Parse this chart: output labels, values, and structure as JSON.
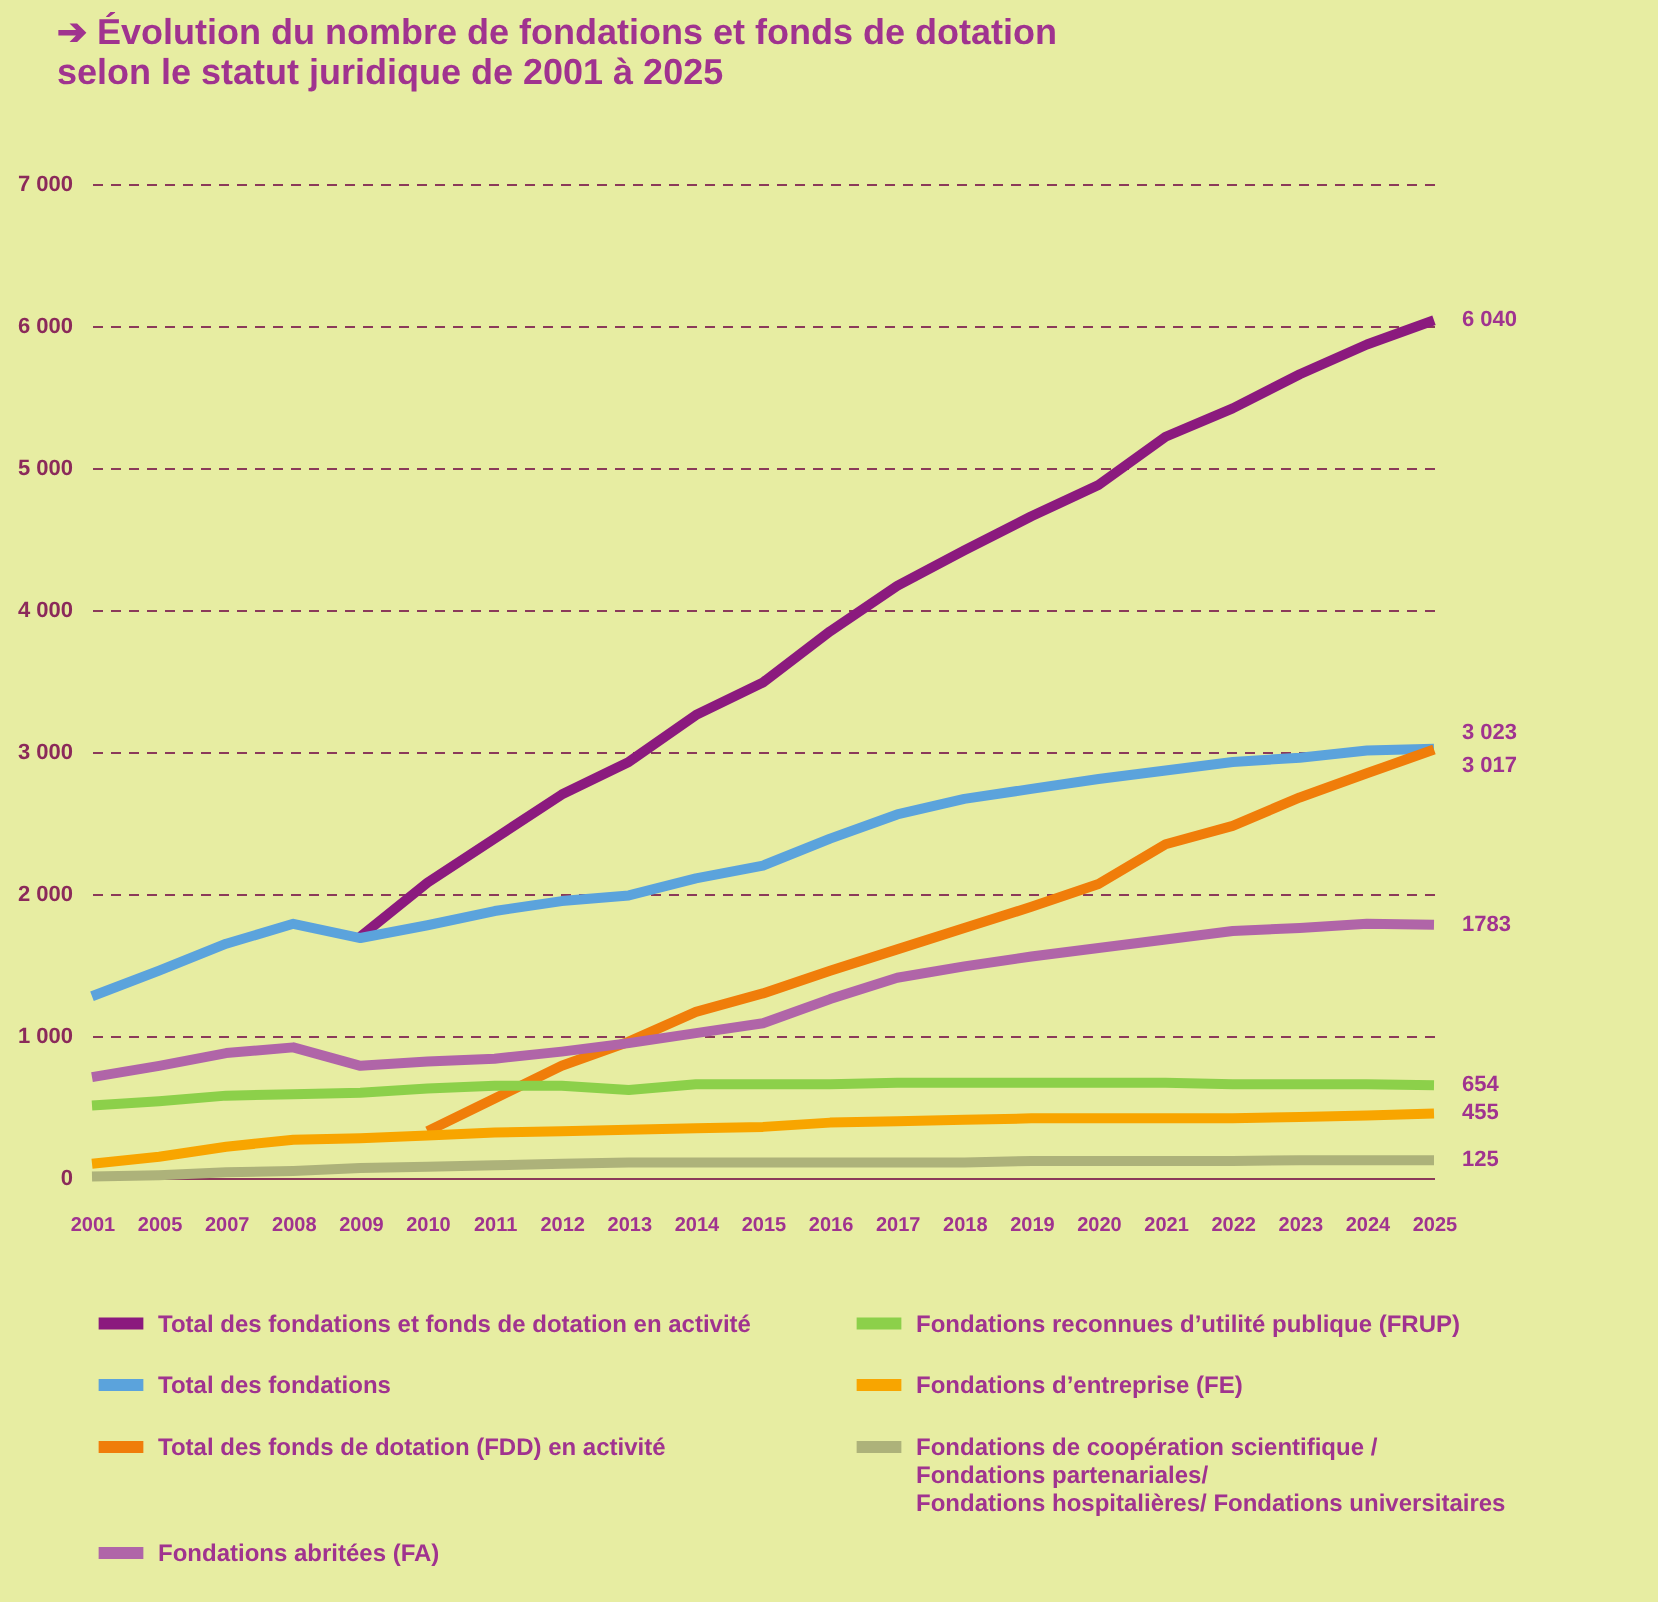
{
  "chart_data": {
    "type": "line",
    "title": "➔ Évolution du nombre de fondations et fonds de dotation selon le statut juridique de 2001 à 2025",
    "categories": [
      "2001",
      "2005",
      "2007",
      "2008",
      "2009",
      "2010",
      "2011",
      "2012",
      "2013",
      "2014",
      "2015",
      "2016",
      "2017",
      "2018",
      "2019",
      "2020",
      "2021",
      "2022",
      "2023",
      "2024",
      "2025"
    ],
    "series": [
      {
        "name": "Total des fondations et fonds de dotation en activité",
        "color": "#8b1a7e",
        "values": [
          null,
          null,
          null,
          null,
          1700,
          2080,
          2390,
          2700,
          2930,
          3260,
          3490,
          3850,
          4170,
          4420,
          4660,
          4880,
          5220,
          5420,
          5660,
          5870,
          6040
        ]
      },
      {
        "name": "Total des fondations",
        "color": "#5ba3dc",
        "values": [
          1280,
          1460,
          1650,
          1790,
          1690,
          1780,
          1880,
          1950,
          1990,
          2110,
          2200,
          2390,
          2560,
          2670,
          2740,
          2810,
          2870,
          2930,
          2960,
          3010,
          3023
        ]
      },
      {
        "name": "Total des fonds de dotation (FDD) en activité",
        "color": "#f07d0a",
        "values": [
          null,
          null,
          null,
          null,
          null,
          330,
          560,
          790,
          960,
          1170,
          1300,
          1460,
          1610,
          1760,
          1910,
          2070,
          2350,
          2480,
          2680,
          2850,
          3017
        ]
      },
      {
        "name": "Fondations abritées (FA)",
        "color": "#b065a8",
        "values": [
          710,
          790,
          880,
          920,
          790,
          820,
          840,
          890,
          950,
          1020,
          1090,
          1260,
          1410,
          1490,
          1560,
          1620,
          1680,
          1740,
          1760,
          1790,
          1783
        ]
      },
      {
        "name": "Fondations reconnues d’utilité publique (FRUP)",
        "color": "#8cd04a",
        "values": [
          510,
          540,
          580,
          590,
          600,
          630,
          650,
          650,
          620,
          660,
          660,
          660,
          670,
          670,
          670,
          670,
          670,
          660,
          660,
          660,
          654
        ]
      },
      {
        "name": "Fondations d’entreprise (FE)",
        "color": "#f8a500",
        "values": [
          100,
          150,
          220,
          270,
          280,
          300,
          320,
          330,
          340,
          350,
          360,
          390,
          400,
          410,
          420,
          420,
          420,
          420,
          430,
          440,
          455
        ]
      },
      {
        "name": "Fondations de coopération scientifique / Fondations partenariales/ Fondations hospitalières/ Fondations universitaires",
        "color": "#adb27a",
        "values": [
          10,
          20,
          40,
          50,
          70,
          80,
          90,
          100,
          110,
          110,
          110,
          110,
          110,
          110,
          120,
          120,
          120,
          120,
          125,
          125,
          125
        ]
      }
    ],
    "ylim": [
      0,
      7000
    ],
    "yticks": [
      0,
      {
        "value": 1000,
        "label": "1 000"
      },
      {
        "value": 2000,
        "label": "2 000"
      },
      {
        "value": 3000,
        "label": "3 000"
      },
      {
        "value": 4000,
        "label": "4 000"
      },
      {
        "value": 5000,
        "label": "5 000"
      },
      {
        "value": 6000,
        "label": "6 000"
      },
      {
        "value": 7000,
        "label": "7 000"
      }
    ],
    "grid": "y",
    "legend": "bottom",
    "line_style": "solid",
    "marker": "none",
    "annotations": [
      {
        "text": "6 040",
        "x": "2025",
        "y": 6040
      },
      {
        "text": "3 023",
        "x": "2025",
        "y": 3023
      },
      {
        "text": "3 017",
        "x": "2025",
        "y": 3017
      },
      {
        "text": "1783",
        "x": "2025",
        "y": 1783
      },
      {
        "text": "654",
        "x": "2025",
        "y": 654
      },
      {
        "text": "455",
        "x": "2025",
        "y": 455
      },
      {
        "text": "125",
        "x": "2025",
        "y": 125
      }
    ]
  }
}
